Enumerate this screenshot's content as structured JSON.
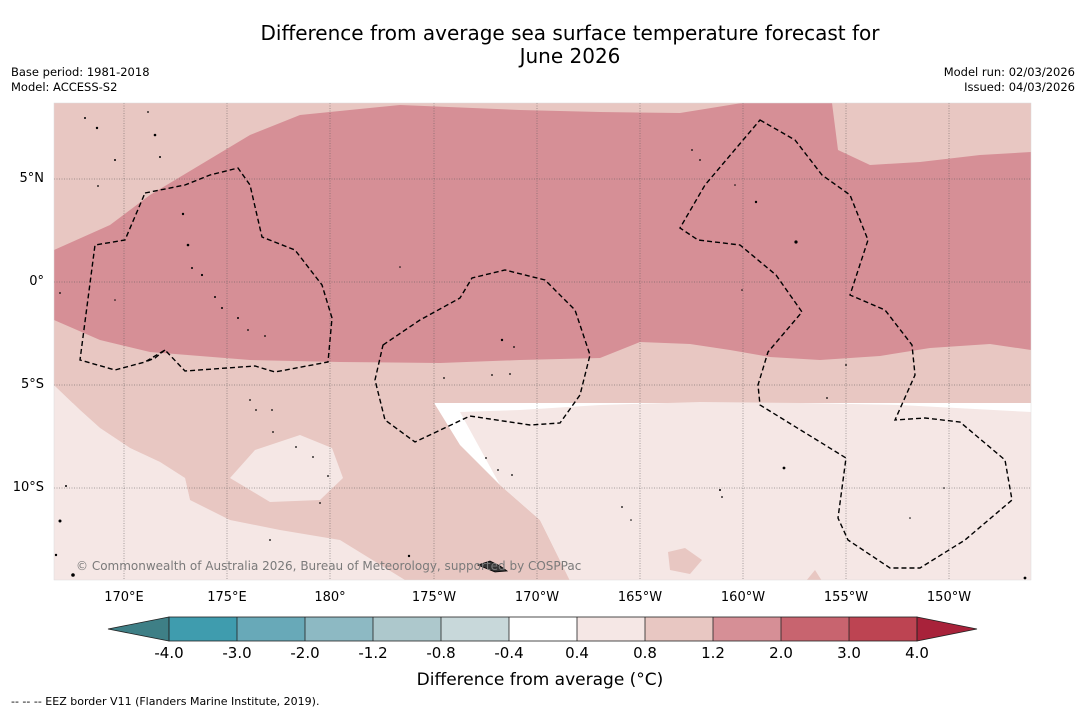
{
  "title_line1": "Difference from average sea surface temperature forecast for",
  "title_line2": "June 2026",
  "meta_left": {
    "base_period": "Base period: 1981-2018",
    "model": "Model: ACCESS-S2"
  },
  "meta_right": {
    "model_run": "Model run: 02/03/2026",
    "issued": "Issued: 04/03/2026"
  },
  "lat_labels": [
    "5°N",
    "0°",
    "5°S",
    "10°S"
  ],
  "lon_labels": [
    "170°E",
    "175°E",
    "180°",
    "175°W",
    "170°W",
    "165°W",
    "160°W",
    "155°W",
    "150°W"
  ],
  "copyright": "© Commonwealth of Australia 2026, Bureau of Meteorology, supported by COSPPac",
  "colorbar": {
    "title": "Difference from average (°C)",
    "ticks": [
      "-4.0",
      "-3.0",
      "-2.0",
      "-1.2",
      "-0.8",
      "-0.4",
      "0.4",
      "0.8",
      "1.2",
      "2.0",
      "3.0",
      "4.0"
    ],
    "colors": [
      "#3f9cae",
      "#68a9b8",
      "#8db9c3",
      "#adc8cc",
      "#c8d8da",
      "#ffffff",
      "#f5e7e5",
      "#e8c7c2",
      "#d68f96",
      "#c8646f",
      "#bd4452"
    ],
    "under_color": "#3e7f86",
    "over_color": "#a8223a"
  },
  "footnote": "-- -- -- EEZ border V11 (Flanders Marine Institute, 2019)."
}
